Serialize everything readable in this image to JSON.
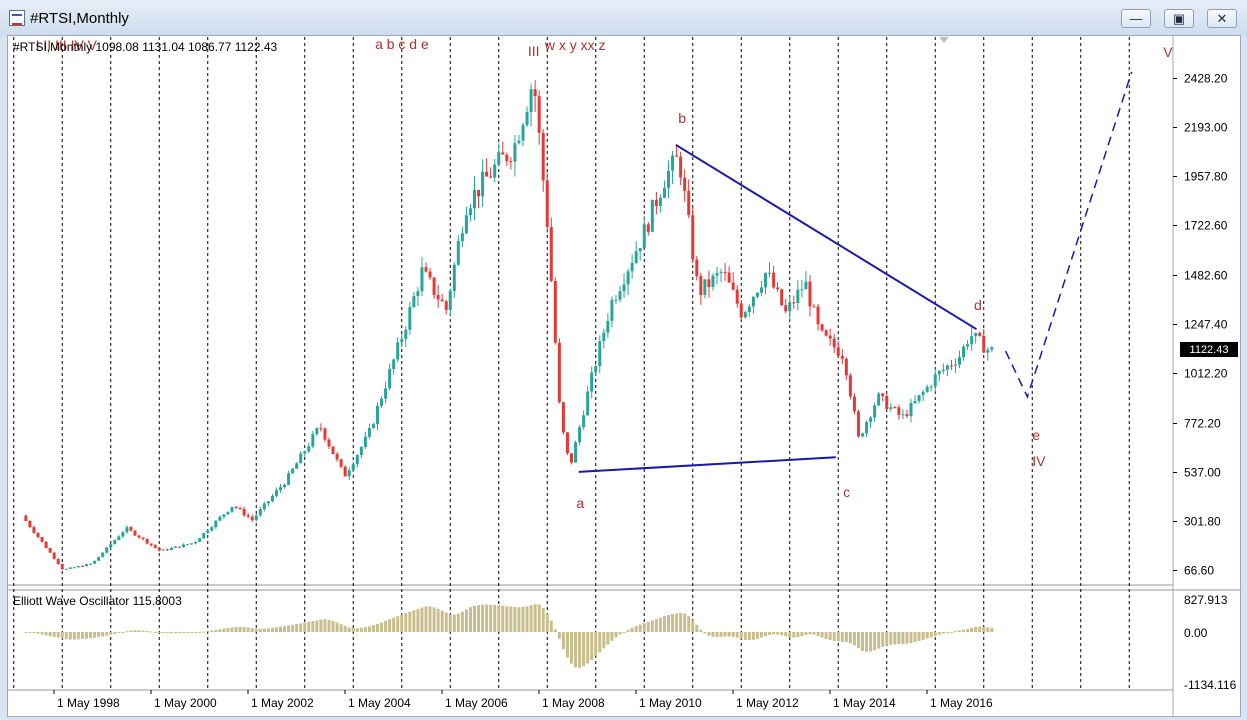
{
  "window": {
    "title": "#RTSI,Monthly",
    "buttons": [
      "minimize",
      "maximize",
      "close"
    ]
  },
  "chart": {
    "header": "#RTSI,Monthly  1098.08 1131.04 1086.77 1122.43",
    "symbol": "#RTSI",
    "timeframe": "Monthly",
    "ohlc": {
      "open": 1098.08,
      "high": 1131.04,
      "low": 1086.77,
      "close": 1122.43
    },
    "current_price_label": "1122.43",
    "colors": {
      "bull": "#26a69a",
      "bear": "#e53935",
      "channel": "#1a1aa8",
      "wave_label": "#b3312c",
      "oscillator": "#c8be8c"
    }
  },
  "oscillator": {
    "label": "Elliott Wave Oscillator 115.8003",
    "name": "Elliott Wave Oscillator",
    "value": 115.8003,
    "ticks": [
      "827.913",
      "0.00",
      "-1134.116"
    ]
  },
  "chart_data": {
    "type": "candlestick",
    "ylim": [
      0,
      2600
    ],
    "y_ticks": [
      "2428.20",
      "2193.00",
      "1957.80",
      "1722.60",
      "1482.60",
      "1247.40",
      "1012.20",
      "772.20",
      "537.00",
      "301.80",
      "66.60"
    ],
    "x_ticks": [
      "1 May 1998",
      "1 May 2000",
      "1 May 2002",
      "1 May 2004",
      "1 May 2006",
      "1 May 2008",
      "1 May 2010",
      "1 May 2012",
      "1 May 2014",
      "1 May 2016"
    ],
    "anchors": [
      [
        1997.75,
        330
      ],
      [
        1998.6,
        70
      ],
      [
        1999.2,
        100
      ],
      [
        1999.9,
        270
      ],
      [
        2000.6,
        160
      ],
      [
        2001.3,
        200
      ],
      [
        2002.1,
        380
      ],
      [
        2002.5,
        310
      ],
      [
        2003.2,
        500
      ],
      [
        2003.9,
        760
      ],
      [
        2004.4,
        520
      ],
      [
        2004.9,
        720
      ],
      [
        2005.6,
        1200
      ],
      [
        2006.0,
        1500
      ],
      [
        2006.5,
        1320
      ],
      [
        2006.9,
        1820
      ],
      [
        2007.5,
        2000
      ],
      [
        2007.9,
        2100
      ],
      [
        2008.3,
        2430
      ],
      [
        2008.6,
        1700
      ],
      [
        2008.85,
        800
      ],
      [
        2009.05,
        560
      ],
      [
        2009.4,
        900
      ],
      [
        2009.9,
        1350
      ],
      [
        2010.6,
        1700
      ],
      [
        2011.0,
        1950
      ],
      [
        2011.3,
        2050
      ],
      [
        2011.7,
        1400
      ],
      [
        2012.2,
        1500
      ],
      [
        2012.6,
        1300
      ],
      [
        2013.1,
        1500
      ],
      [
        2013.5,
        1300
      ],
      [
        2013.9,
        1450
      ],
      [
        2014.2,
        1200
      ],
      [
        2014.7,
        1100
      ],
      [
        2015.0,
        700
      ],
      [
        2015.4,
        900
      ],
      [
        2015.9,
        800
      ],
      [
        2016.2,
        880
      ],
      [
        2016.6,
        1000
      ],
      [
        2017.1,
        1100
      ],
      [
        2017.3,
        1200
      ],
      [
        2017.7,
        1122
      ]
    ],
    "waves": [
      {
        "text": "I II III IV V",
        "x": 1997.95
      },
      {
        "text": "a b c d e",
        "x": 2004.95
      },
      {
        "text": "III",
        "x": 2008.1
      },
      {
        "text": "w x y xx z",
        "x": 2008.45
      },
      {
        "text": "a",
        "x": 2009.1
      },
      {
        "text": "b",
        "x": 2011.2
      },
      {
        "text": "c",
        "x": 2014.6
      },
      {
        "text": "d",
        "x": 2017.3
      },
      {
        "text": "e",
        "x": 2018.5
      },
      {
        "text": "IV",
        "x": 2018.5
      },
      {
        "text": "V",
        "x": 2021.2
      }
    ],
    "lines": {
      "lower_start": [
        2009.15,
        540
      ],
      "lower_end": [
        2014.45,
        610
      ],
      "upper_start": [
        2011.15,
        2110
      ],
      "upper_end": [
        2017.35,
        1225
      ],
      "projection": [
        [
          2017.95,
          1120
        ],
        [
          2018.4,
          900
        ],
        [
          2020.55,
          2460
        ]
      ]
    }
  }
}
